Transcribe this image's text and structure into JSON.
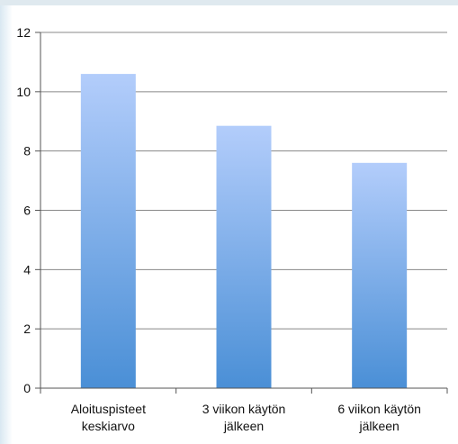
{
  "chart_data": {
    "type": "bar",
    "categories": [
      [
        "Aloituspisteet",
        "keskiarvo"
      ],
      [
        "3 viikon käytön",
        "jälkeen"
      ],
      [
        "6 viikon käytön",
        "jälkeen"
      ]
    ],
    "values": [
      10.6,
      8.85,
      7.6
    ],
    "title": "",
    "xlabel": "",
    "ylabel": "",
    "ylim": [
      0,
      12
    ],
    "yticks": [
      0,
      2,
      4,
      6,
      8,
      10,
      12
    ],
    "grid": true,
    "legend": "none",
    "colors": {
      "bar_top": "#b3cdfb",
      "bar_bottom": "#4a8fd6",
      "grid": "#888888",
      "axis": "#555555",
      "frame_tint": "#d9e8f2"
    }
  }
}
